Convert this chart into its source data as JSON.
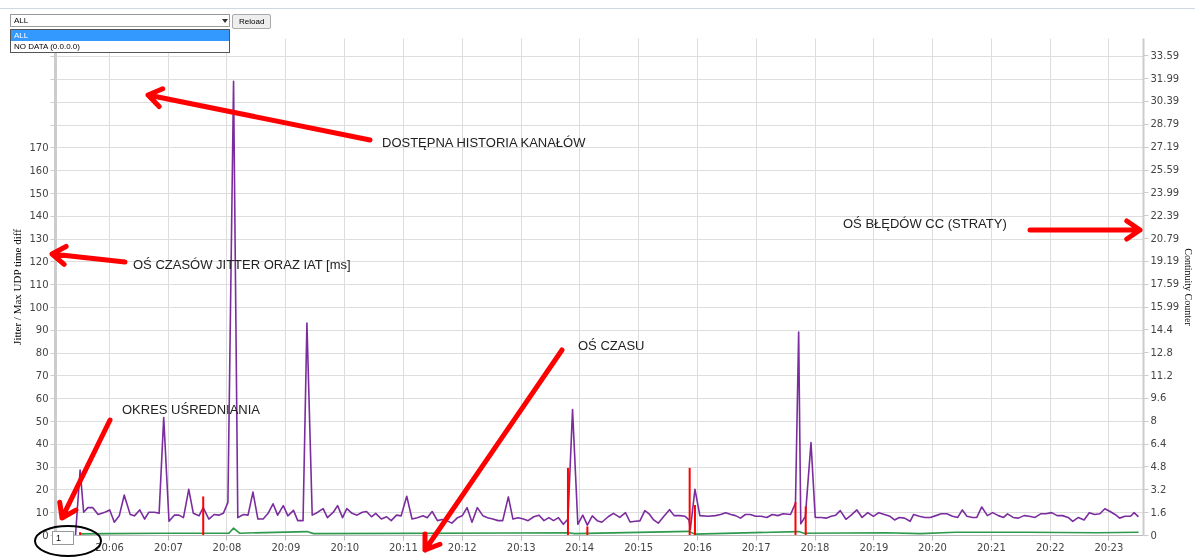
{
  "chart_data": {
    "type": "line",
    "ylabel": "Jitter / Max UDP time diff",
    "y2label": "Continuity Counter",
    "annotations": [
      "ALL",
      "Reload",
      "ALL",
      "NO DATA (0.0.0.0)",
      "1",
      "DOSTĘPNA HISTORIA KANAŁÓW",
      "OŚ CZASÓW JITTER ORAZ IAT [ms]",
      "OŚ BŁĘDÓW CC (STRATY)",
      "OŚ CZASU",
      "OKRES UŚREDNIANIA"
    ],
    "xlim": [
      20.0861,
      20.3917
    ],
    "xticks": [
      {
        "value": 20.1,
        "label": "20:06"
      },
      {
        "value": 20.1167,
        "label": "20:07"
      },
      {
        "value": 20.1333,
        "label": "20:08"
      },
      {
        "value": 20.15,
        "label": "20:09"
      },
      {
        "value": 20.1667,
        "label": "20:10"
      },
      {
        "value": 20.1833,
        "label": "20:11"
      },
      {
        "value": 20.2,
        "label": "20:12"
      },
      {
        "value": 20.2167,
        "label": "20:13"
      },
      {
        "value": 20.2333,
        "label": "20:14"
      },
      {
        "value": 20.25,
        "label": "20:15"
      },
      {
        "value": 20.2667,
        "label": "20:16"
      },
      {
        "value": 20.2833,
        "label": "20:17"
      },
      {
        "value": 20.3,
        "label": "20:18"
      },
      {
        "value": 20.3167,
        "label": "20:19"
      },
      {
        "value": 20.3333,
        "label": "20:20"
      },
      {
        "value": 20.35,
        "label": "20:21"
      },
      {
        "value": 20.3667,
        "label": "20:22"
      },
      {
        "value": 20.3833,
        "label": "20:23"
      }
    ],
    "ylim": [
      0,
      218
    ],
    "yticks": [
      0,
      10,
      20,
      30,
      40,
      50,
      60,
      70,
      80,
      90,
      100,
      110,
      120,
      130,
      140,
      150,
      160,
      170,
      {
        "value": 180,
        "label": null
      },
      {
        "value": 190,
        "label": null
      },
      {
        "value": 200,
        "label": null
      },
      {
        "value": 210,
        "label": null
      }
    ],
    "y2lim": [
      0,
      34.8
    ],
    "y2ticks": [
      0,
      1.6,
      3.2,
      4.8,
      6.4,
      8,
      9.6,
      11.2,
      12.8,
      14.4,
      15.99,
      17.59,
      19.19,
      20.79,
      22.39,
      23.99,
      25.59,
      27.19,
      28.79,
      30.39,
      31.99,
      33.59
    ],
    "grid": true,
    "series": [
      {
        "color": "#7b2d9e",
        "x": [
          20.0905,
          20.0918,
          20.0928,
          20.094,
          20.0954,
          20.0969,
          20.0988,
          20.1002,
          20.1015,
          20.1029,
          20.1043,
          20.106,
          20.1072,
          20.1087,
          20.1101,
          20.1113,
          20.1129,
          20.1142,
          20.1155,
          20.117,
          20.1185,
          20.1198,
          20.1211,
          20.1226,
          20.1239,
          20.1255,
          20.1267,
          20.1283,
          20.1298,
          20.1311,
          20.1324,
          20.1337,
          20.1353,
          20.1365,
          20.1381,
          20.1394,
          20.1408,
          20.1422,
          20.1437,
          20.1451,
          20.1465,
          20.1478,
          20.1494,
          20.1507,
          20.1523,
          20.1535,
          20.155,
          20.1561,
          20.1576,
          20.1592,
          20.1607,
          20.1619,
          20.1636,
          20.1648,
          20.1662,
          20.1674,
          20.1689,
          20.1703,
          20.1718,
          20.173,
          20.1744,
          20.1756,
          20.1772,
          20.1787,
          20.18,
          20.1815,
          20.1828,
          20.1844,
          20.1859,
          20.1874,
          20.189,
          20.1902,
          20.1916,
          20.1931,
          20.1944,
          20.1957,
          20.1972,
          20.1988,
          20.2001,
          20.2015,
          20.2029,
          20.2044,
          20.206,
          20.2073,
          20.2088,
          20.2103,
          20.2116,
          20.2132,
          20.2145,
          20.216,
          20.2175,
          20.2188,
          20.2204,
          20.2219,
          20.2233,
          20.2247,
          20.226,
          20.2274,
          20.2288,
          20.2301,
          20.2314,
          20.2329,
          20.2343,
          20.2356,
          20.237,
          20.2384,
          20.2397,
          20.2415,
          20.243,
          20.2448,
          20.2464,
          20.2477,
          20.2492,
          20.2505,
          20.2519,
          20.2531,
          20.2544,
          20.2557,
          20.2573,
          20.2589,
          20.2602,
          20.2618,
          20.2633,
          20.2644,
          20.2648,
          20.2661,
          20.2675,
          20.2698,
          20.2719,
          20.2734,
          20.2748,
          20.2763,
          20.2776,
          20.279,
          20.2804,
          20.2818,
          20.2833,
          20.2849,
          20.2865,
          20.288,
          20.2896,
          20.2911,
          20.2932,
          20.2946,
          20.2955,
          20.2961,
          20.2974,
          20.299,
          20.3002,
          20.3019,
          20.3033,
          20.3047,
          20.306,
          20.3073,
          20.3089,
          20.3104,
          20.312,
          20.3135,
          20.3151,
          20.3167,
          20.3182,
          20.3198,
          20.3214,
          20.3227,
          20.324,
          20.3255,
          20.3271,
          20.3281,
          20.3297,
          20.3313,
          20.3328,
          20.3344,
          20.3359,
          20.3375,
          20.3391,
          20.3406,
          20.3419,
          20.3432,
          20.3448,
          20.346,
          20.3474,
          20.349,
          20.3505,
          20.3521,
          20.3536,
          20.3547,
          20.3563,
          20.3578,
          20.3594,
          20.3609,
          20.3625,
          20.3641,
          20.3656,
          20.3672,
          20.3688,
          20.3703,
          20.3719,
          20.3732,
          20.3748,
          20.3764,
          20.3779,
          20.3794,
          20.3809,
          20.3823,
          20.3839,
          20.3852,
          20.3865,
          20.388,
          20.3896,
          20.3906,
          20.3917
        ],
        "values": [
          0,
          28.5,
          10,
          12,
          12,
          9,
          10,
          11,
          5.6,
          8.4,
          17.5,
          9,
          8.4,
          11,
          7,
          10,
          10,
          9.5,
          51.5,
          6,
          8.7,
          8.7,
          7.6,
          20,
          9.5,
          8.4,
          12,
          7,
          9,
          8.7,
          9.5,
          14.3,
          199,
          7.6,
          9,
          8.7,
          18.8,
          7,
          7,
          9.5,
          13.7,
          8.7,
          12.9,
          8.4,
          10.8,
          6.3,
          6.3,
          93,
          8.7,
          10,
          11.6,
          7.6,
          10,
          12.9,
          7.6,
          11.6,
          9.5,
          8.7,
          10,
          10.3,
          8,
          9.5,
          7,
          8,
          6.3,
          8.7,
          8.4,
          17,
          7,
          7.6,
          8.4,
          7.6,
          10.3,
          6.3,
          6.8,
          6.3,
          5.2,
          7.6,
          8.4,
          12,
          5.6,
          12,
          8.4,
          7.6,
          7,
          6.3,
          6.3,
          16.7,
          7,
          7.6,
          7,
          6.3,
          8,
          8.7,
          6.3,
          7.6,
          6.3,
          7.6,
          4.7,
          7,
          55,
          4.7,
          8.7,
          4.3,
          8.4,
          6.3,
          5.6,
          8,
          9.5,
          7.7,
          9.8,
          5.7,
          6,
          6.2,
          10.7,
          9.3,
          6.6,
          5.2,
          8.2,
          11.1,
          8.5,
          8.5,
          8.2,
          6.6,
          2.5,
          20,
          8.5,
          8.2,
          8.5,
          9,
          9.8,
          9,
          8.5,
          7.4,
          9,
          9,
          8.2,
          8.2,
          7.7,
          9,
          8.5,
          9.3,
          9,
          13.9,
          89,
          4.9,
          8.2,
          40.5,
          7.7,
          7.7,
          7.4,
          8.2,
          8.7,
          10.7,
          6.9,
          8.7,
          11,
          7.7,
          9.8,
          8.2,
          9.8,
          9,
          8.2,
          6.6,
          7.7,
          7.4,
          6,
          9,
          8.2,
          7.7,
          7.7,
          8.5,
          9.3,
          9.3,
          8.2,
          7.7,
          11,
          8.2,
          7.7,
          7.7,
          12.3,
          8.5,
          9.8,
          8.5,
          7.7,
          9.3,
          7.7,
          7.4,
          8.5,
          8.2,
          7.7,
          9.3,
          9.3,
          9.8,
          8.5,
          8.5,
          7.7,
          6,
          7.7,
          6.6,
          9.8,
          9,
          9.3,
          11.5,
          10.2,
          9,
          7.4,
          8.2,
          8.2,
          9.8,
          8.2
        ]
      },
      {
        "color": "#2e9a4e",
        "x": [
          20.0918,
          20.1,
          20.1155,
          20.134,
          20.1353,
          20.137,
          20.1561,
          20.158,
          20.2301,
          20.232,
          20.2644,
          20.266,
          20.2955,
          20.297,
          20.32,
          20.33,
          20.34,
          20.36,
          20.38,
          20.3917
        ],
        "values": [
          0.5,
          0.6,
          0.8,
          0.8,
          3,
          0.8,
          1.5,
          0.6,
          1,
          0.6,
          1.6,
          0.4,
          1.5,
          0.8,
          1,
          0.6,
          1.2,
          1.2,
          1,
          1.2
        ]
      },
      {
        "type": "bar",
        "axis": "y2",
        "color": "#ff0000",
        "x": [
          20.0918,
          20.1267,
          20.2301,
          20.2356,
          20.2646,
          20.2661,
          20.2946,
          20.2975
        ],
        "values": [
          0.2,
          2.7,
          4.7,
          0.6,
          4.7,
          2.1,
          2.3,
          2
        ]
      }
    ]
  }
}
